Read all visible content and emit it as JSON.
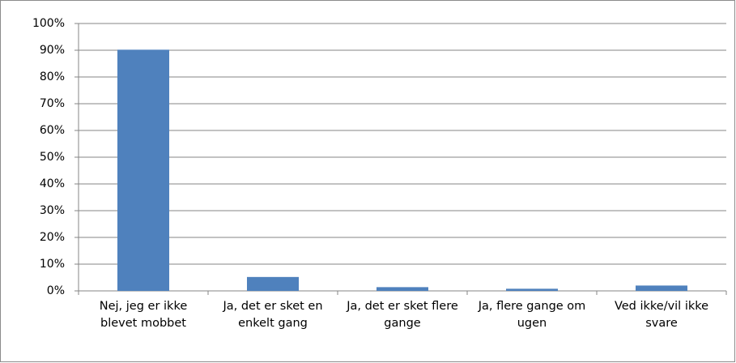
{
  "chart_data": {
    "type": "bar",
    "categories": [
      "Nej, jeg er ikke blevet mobbet",
      "Ja, det er sket en enkelt gang",
      "Ja, det er sket flere gange",
      "Ja, flere gange om ugen",
      "Ved ikke/vil ikke svare"
    ],
    "values": [
      90.2,
      5.2,
      1.4,
      0.8,
      2.0
    ],
    "color": "#4f81bd",
    "ylim": [
      0,
      100
    ],
    "yticks": [
      {
        "value": 0,
        "label": "0%"
      },
      {
        "value": 10,
        "label": "10%"
      },
      {
        "value": 20,
        "label": "20%"
      },
      {
        "value": 30,
        "label": "30%"
      },
      {
        "value": 40,
        "label": "40%"
      },
      {
        "value": 50,
        "label": "50%"
      },
      {
        "value": 60,
        "label": "60%"
      },
      {
        "value": 70,
        "label": "70%"
      },
      {
        "value": 80,
        "label": "80%"
      },
      {
        "value": 90,
        "label": "90%"
      },
      {
        "value": 100,
        "label": "100%"
      }
    ],
    "grid": true
  }
}
